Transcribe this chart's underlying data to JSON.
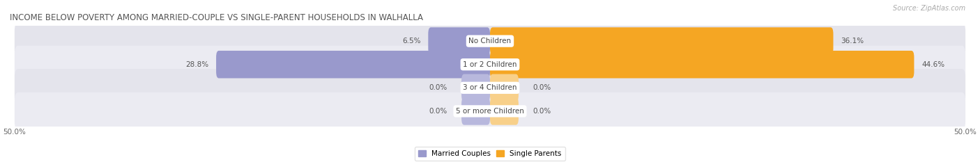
{
  "title": "INCOME BELOW POVERTY AMONG MARRIED-COUPLE VS SINGLE-PARENT HOUSEHOLDS IN WALHALLA",
  "source": "Source: ZipAtlas.com",
  "categories": [
    "No Children",
    "1 or 2 Children",
    "3 or 4 Children",
    "5 or more Children"
  ],
  "married_values": [
    6.5,
    28.8,
    0.0,
    0.0
  ],
  "single_values": [
    36.1,
    44.6,
    0.0,
    0.0
  ],
  "xlim": 50.0,
  "married_color": "#9999cc",
  "married_color_stub": "#b8b8dd",
  "single_color": "#f5a623",
  "single_color_stub": "#f8d08a",
  "bar_bg_color": "#e4e4ec",
  "bar_bg_color2": "#ebebf2",
  "title_color": "#555555",
  "title_fontsize": 8.5,
  "label_fontsize": 7.5,
  "tick_fontsize": 7.5,
  "source_fontsize": 7,
  "value_fontsize": 7.5
}
